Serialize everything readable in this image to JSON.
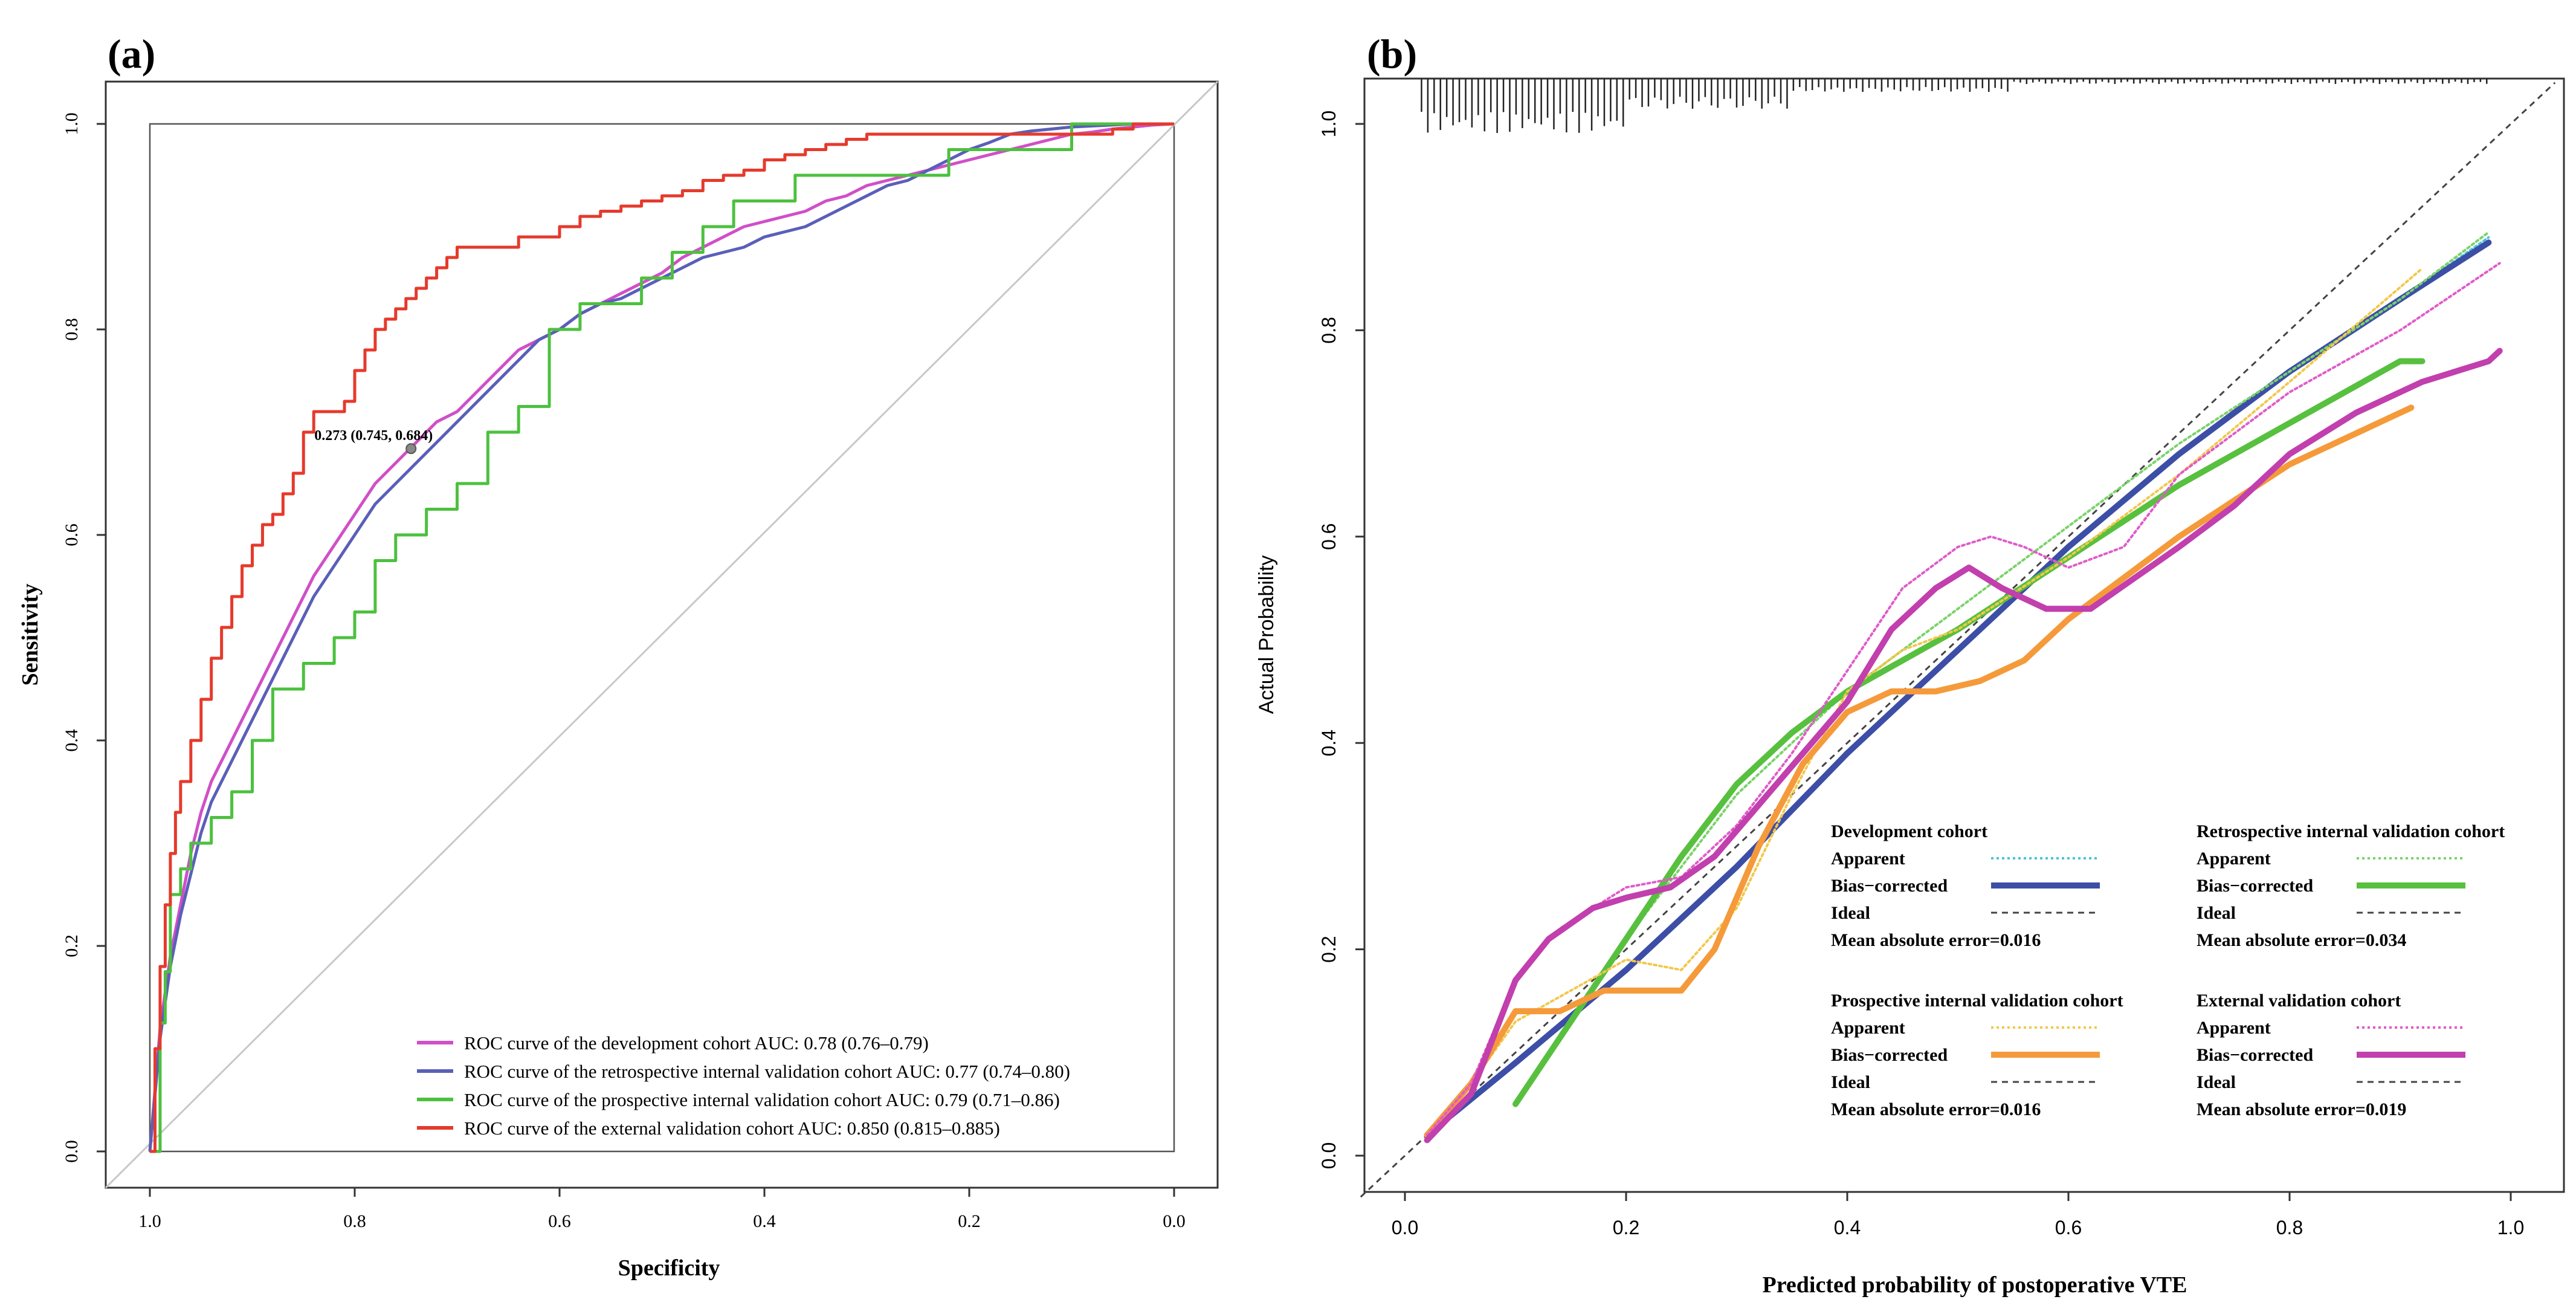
{
  "chart_data": [
    {
      "type": "line",
      "panel_label": "(a)",
      "xlabel": "Specificity",
      "ylabel": "Sensitivity",
      "xlim": [
        1.0,
        0.0
      ],
      "ylim": [
        0.0,
        1.0
      ],
      "x_ticks": [
        "1.0",
        "0.8",
        "0.6",
        "0.4",
        "0.2",
        "0.0"
      ],
      "y_ticks": [
        "0.0",
        "0.2",
        "0.4",
        "0.6",
        "0.8",
        "1.0"
      ],
      "legend_position": "bottom-right",
      "annotation": {
        "text": "0.273 (0.745, 0.684)",
        "specificity": 0.745,
        "sensitivity": 0.684
      },
      "series": [
        {
          "name": "ROC curve of the development cohort AUC: 0.78 (0.76–0.79)",
          "color": "#d04fc8",
          "spec": [
            1.0,
            0.99,
            0.98,
            0.97,
            0.96,
            0.95,
            0.94,
            0.92,
            0.9,
            0.88,
            0.86,
            0.84,
            0.82,
            0.8,
            0.78,
            0.76,
            0.74,
            0.72,
            0.7,
            0.68,
            0.66,
            0.64,
            0.62,
            0.6,
            0.58,
            0.56,
            0.54,
            0.52,
            0.5,
            0.48,
            0.46,
            0.44,
            0.42,
            0.4,
            0.38,
            0.36,
            0.34,
            0.32,
            0.3,
            0.28,
            0.26,
            0.24,
            0.22,
            0.2,
            0.18,
            0.16,
            0.14,
            0.12,
            0.1,
            0.08,
            0.06,
            0.04,
            0.02,
            0.0
          ],
          "sens": [
            0.0,
            0.12,
            0.19,
            0.24,
            0.29,
            0.33,
            0.36,
            0.4,
            0.44,
            0.48,
            0.52,
            0.56,
            0.59,
            0.62,
            0.65,
            0.67,
            0.69,
            0.71,
            0.72,
            0.74,
            0.76,
            0.78,
            0.79,
            0.8,
            0.815,
            0.825,
            0.835,
            0.845,
            0.855,
            0.87,
            0.88,
            0.89,
            0.9,
            0.905,
            0.91,
            0.915,
            0.925,
            0.93,
            0.94,
            0.945,
            0.95,
            0.955,
            0.96,
            0.965,
            0.97,
            0.975,
            0.98,
            0.985,
            0.99,
            0.992,
            0.995,
            0.997,
            0.999,
            1.0
          ]
        },
        {
          "name": "ROC curve of the retrospective internal validation cohort AUC: 0.77 (0.74–0.80)",
          "color": "#5a5fb8",
          "spec": [
            1.0,
            0.99,
            0.98,
            0.97,
            0.96,
            0.95,
            0.94,
            0.92,
            0.9,
            0.88,
            0.86,
            0.84,
            0.82,
            0.8,
            0.78,
            0.76,
            0.74,
            0.72,
            0.7,
            0.68,
            0.66,
            0.64,
            0.62,
            0.6,
            0.58,
            0.56,
            0.54,
            0.52,
            0.5,
            0.48,
            0.46,
            0.44,
            0.42,
            0.4,
            0.38,
            0.36,
            0.34,
            0.32,
            0.3,
            0.28,
            0.26,
            0.24,
            0.22,
            0.2,
            0.18,
            0.16,
            0.14,
            0.12,
            0.1,
            0.08,
            0.06,
            0.04,
            0.02,
            0.0
          ],
          "sens": [
            0.0,
            0.11,
            0.18,
            0.23,
            0.27,
            0.31,
            0.34,
            0.38,
            0.42,
            0.46,
            0.5,
            0.54,
            0.57,
            0.6,
            0.63,
            0.65,
            0.67,
            0.69,
            0.71,
            0.73,
            0.75,
            0.77,
            0.79,
            0.8,
            0.815,
            0.825,
            0.83,
            0.84,
            0.85,
            0.86,
            0.87,
            0.875,
            0.88,
            0.89,
            0.895,
            0.9,
            0.91,
            0.92,
            0.93,
            0.94,
            0.945,
            0.955,
            0.965,
            0.975,
            0.982,
            0.99,
            0.993,
            0.995,
            0.997,
            0.998,
            0.999,
            1.0,
            1.0,
            1.0
          ]
        },
        {
          "name": "ROC curve of the prospective internal validation cohort AUC: 0.79 (0.71–0.86)",
          "color": "#4cc13e",
          "step": true,
          "spec": [
            1.0,
            0.99,
            0.985,
            0.98,
            0.975,
            0.97,
            0.96,
            0.95,
            0.94,
            0.92,
            0.9,
            0.88,
            0.85,
            0.82,
            0.8,
            0.78,
            0.76,
            0.73,
            0.7,
            0.67,
            0.64,
            0.61,
            0.58,
            0.55,
            0.52,
            0.49,
            0.46,
            0.43,
            0.4,
            0.37,
            0.34,
            0.31,
            0.28,
            0.25,
            0.22,
            0.19,
            0.16,
            0.13,
            0.1,
            0.07,
            0.04,
            0.0
          ],
          "sens": [
            0.0,
            0.125,
            0.175,
            0.25,
            0.25,
            0.275,
            0.3,
            0.3,
            0.325,
            0.35,
            0.4,
            0.45,
            0.475,
            0.5,
            0.525,
            0.575,
            0.6,
            0.625,
            0.65,
            0.7,
            0.725,
            0.8,
            0.825,
            0.825,
            0.85,
            0.875,
            0.9,
            0.925,
            0.925,
            0.95,
            0.95,
            0.95,
            0.95,
            0.95,
            0.975,
            0.975,
            0.975,
            0.975,
            1.0,
            1.0,
            1.0,
            1.0
          ]
        },
        {
          "name": "ROC curve of the external validation cohort AUC: 0.850 (0.815–0.885)",
          "color": "#e53a2c",
          "step": true,
          "spec": [
            1.0,
            0.995,
            0.99,
            0.985,
            0.98,
            0.975,
            0.97,
            0.96,
            0.95,
            0.94,
            0.93,
            0.92,
            0.91,
            0.9,
            0.89,
            0.88,
            0.87,
            0.86,
            0.85,
            0.84,
            0.83,
            0.82,
            0.81,
            0.8,
            0.79,
            0.78,
            0.77,
            0.76,
            0.75,
            0.74,
            0.73,
            0.72,
            0.71,
            0.7,
            0.68,
            0.66,
            0.64,
            0.62,
            0.6,
            0.58,
            0.56,
            0.54,
            0.52,
            0.5,
            0.48,
            0.46,
            0.44,
            0.42,
            0.4,
            0.38,
            0.36,
            0.34,
            0.32,
            0.3,
            0.28,
            0.26,
            0.24,
            0.22,
            0.2,
            0.18,
            0.16,
            0.14,
            0.12,
            0.1,
            0.08,
            0.06,
            0.04,
            0.02,
            0.0
          ],
          "sens": [
            0.0,
            0.1,
            0.18,
            0.24,
            0.29,
            0.33,
            0.36,
            0.4,
            0.44,
            0.48,
            0.51,
            0.54,
            0.57,
            0.59,
            0.61,
            0.62,
            0.64,
            0.66,
            0.7,
            0.72,
            0.72,
            0.72,
            0.73,
            0.76,
            0.78,
            0.8,
            0.81,
            0.82,
            0.83,
            0.84,
            0.85,
            0.86,
            0.87,
            0.88,
            0.88,
            0.88,
            0.89,
            0.89,
            0.9,
            0.91,
            0.915,
            0.92,
            0.925,
            0.93,
            0.935,
            0.945,
            0.95,
            0.955,
            0.965,
            0.97,
            0.975,
            0.98,
            0.985,
            0.99,
            0.99,
            0.99,
            0.99,
            0.99,
            0.99,
            0.99,
            0.99,
            0.99,
            0.99,
            0.99,
            0.99,
            0.995,
            1.0,
            1.0,
            1.0
          ]
        }
      ]
    },
    {
      "type": "line",
      "panel_label": "(b)",
      "xlabel": "Predicted probability of postoperative VTE",
      "ylabel": "Actual Probability",
      "xlim": [
        -0.04,
        1.04
      ],
      "ylim": [
        -0.04,
        1.04
      ],
      "x_ticks": [
        "0.0",
        "0.2",
        "0.4",
        "0.6",
        "0.8",
        "1.0"
      ],
      "y_ticks": [
        "0.0",
        "0.2",
        "0.4",
        "0.6",
        "0.8",
        "1.0"
      ],
      "rug": true,
      "legend_position": "bottom-right",
      "legend_groups": [
        {
          "title": "Development cohort",
          "apparent": "Apparent",
          "bias": "Bias−corrected",
          "ideal": "Ideal",
          "mae": "Mean absolute error=0.016",
          "apparent_color": "#4fc3d8",
          "bias_color": "#3d4ea6"
        },
        {
          "title": "Retrospective internal validation cohort",
          "apparent": "Apparent",
          "bias": "Bias−corrected",
          "ideal": "Ideal",
          "mae": "Mean absolute error=0.034",
          "apparent_color": "#7ad36a",
          "bias_color": "#58c03f"
        },
        {
          "title": "Prospective internal validation cohort",
          "apparent": "Apparent",
          "bias": "Bias−corrected",
          "ideal": "Ideal",
          "mae": "Mean absolute error=0.016",
          "apparent_color": "#f2c84b",
          "bias_color": "#f59a3a"
        },
        {
          "title": "External validation cohort",
          "apparent": "Apparent",
          "bias": "Bias−corrected",
          "ideal": "Ideal",
          "mae": "Mean absolute error=0.019",
          "apparent_color": "#e05cc8",
          "bias_color": "#c23fae"
        }
      ],
      "series": [
        {
          "name": "Development cohort Apparent",
          "color": "#4fc3d8",
          "dash": "dotted",
          "x": [
            0.02,
            0.1,
            0.2,
            0.3,
            0.4,
            0.5,
            0.6,
            0.7,
            0.8,
            0.9,
            0.98
          ],
          "y": [
            0.02,
            0.09,
            0.18,
            0.28,
            0.39,
            0.49,
            0.59,
            0.68,
            0.76,
            0.83,
            0.89
          ]
        },
        {
          "name": "Development cohort Bias-corrected",
          "color": "#3d4ea6",
          "dash": "solid",
          "x": [
            0.02,
            0.1,
            0.2,
            0.3,
            0.4,
            0.5,
            0.6,
            0.7,
            0.8,
            0.9,
            0.98
          ],
          "y": [
            0.02,
            0.09,
            0.18,
            0.28,
            0.39,
            0.49,
            0.59,
            0.68,
            0.76,
            0.83,
            0.885
          ]
        },
        {
          "name": "Retrospective Apparent",
          "color": "#7ad36a",
          "dash": "dotted",
          "x": [
            0.1,
            0.15,
            0.2,
            0.3,
            0.4,
            0.5,
            0.6,
            0.7,
            0.8,
            0.9,
            0.98
          ],
          "y": [
            0.05,
            0.13,
            0.21,
            0.35,
            0.45,
            0.53,
            0.61,
            0.69,
            0.76,
            0.83,
            0.895
          ]
        },
        {
          "name": "Retrospective Bias-corrected",
          "color": "#58c03f",
          "dash": "solid",
          "x": [
            0.1,
            0.15,
            0.2,
            0.25,
            0.3,
            0.35,
            0.4,
            0.45,
            0.5,
            0.6,
            0.7,
            0.8,
            0.9,
            0.92
          ],
          "y": [
            0.05,
            0.13,
            0.21,
            0.29,
            0.36,
            0.41,
            0.45,
            0.48,
            0.51,
            0.58,
            0.65,
            0.71,
            0.77,
            0.77
          ]
        },
        {
          "name": "Prospective Apparent",
          "color": "#f2c84b",
          "dash": "dotted",
          "x": [
            0.02,
            0.06,
            0.1,
            0.15,
            0.2,
            0.25,
            0.3,
            0.35,
            0.4,
            0.45,
            0.5,
            0.6,
            0.7,
            0.8,
            0.92
          ],
          "y": [
            0.02,
            0.07,
            0.13,
            0.16,
            0.19,
            0.18,
            0.24,
            0.35,
            0.45,
            0.49,
            0.51,
            0.58,
            0.66,
            0.75,
            0.86
          ]
        },
        {
          "name": "Prospective Bias-corrected",
          "color": "#f59a3a",
          "dash": "solid",
          "x": [
            0.02,
            0.06,
            0.1,
            0.14,
            0.18,
            0.22,
            0.25,
            0.28,
            0.32,
            0.36,
            0.4,
            0.44,
            0.48,
            0.52,
            0.56,
            0.6,
            0.7,
            0.8,
            0.91
          ],
          "y": [
            0.02,
            0.07,
            0.14,
            0.14,
            0.16,
            0.16,
            0.16,
            0.2,
            0.3,
            0.38,
            0.43,
            0.45,
            0.45,
            0.46,
            0.48,
            0.52,
            0.6,
            0.67,
            0.725
          ]
        },
        {
          "name": "External Apparent",
          "color": "#e05cc8",
          "dash": "dotted",
          "x": [
            0.02,
            0.06,
            0.1,
            0.14,
            0.2,
            0.25,
            0.3,
            0.35,
            0.4,
            0.45,
            0.5,
            0.53,
            0.56,
            0.6,
            0.65,
            0.7,
            0.8,
            0.9,
            0.99
          ],
          "y": [
            0.02,
            0.07,
            0.17,
            0.22,
            0.26,
            0.27,
            0.32,
            0.39,
            0.47,
            0.55,
            0.59,
            0.6,
            0.59,
            0.57,
            0.59,
            0.66,
            0.74,
            0.8,
            0.865
          ]
        },
        {
          "name": "External Bias-corrected",
          "color": "#c23fae",
          "dash": "solid",
          "x": [
            0.02,
            0.06,
            0.1,
            0.13,
            0.17,
            0.2,
            0.24,
            0.28,
            0.32,
            0.36,
            0.4,
            0.44,
            0.48,
            0.51,
            0.54,
            0.58,
            0.62,
            0.66,
            0.7,
            0.75,
            0.8,
            0.86,
            0.92,
            0.98,
            0.99
          ],
          "y": [
            0.015,
            0.06,
            0.17,
            0.21,
            0.24,
            0.25,
            0.26,
            0.29,
            0.34,
            0.39,
            0.44,
            0.51,
            0.55,
            0.57,
            0.55,
            0.53,
            0.53,
            0.56,
            0.59,
            0.63,
            0.68,
            0.72,
            0.75,
            0.77,
            0.78
          ]
        }
      ]
    }
  ]
}
